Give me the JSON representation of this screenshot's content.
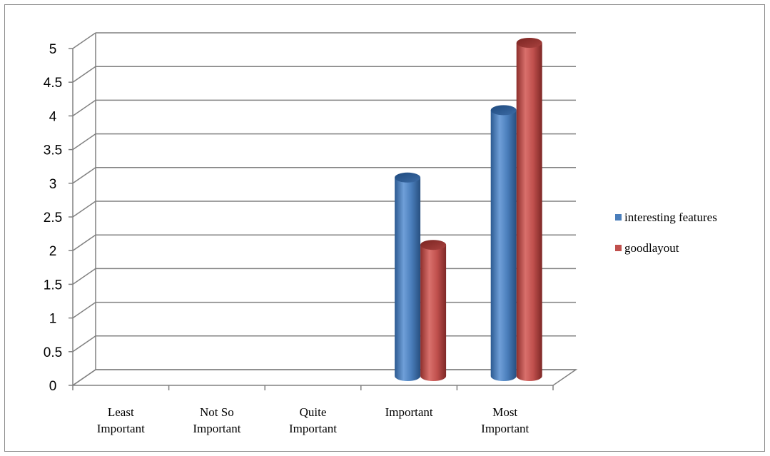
{
  "chart_data": {
    "type": "bar",
    "title": "",
    "xlabel": "",
    "ylabel": "",
    "categories": [
      [
        "Least",
        "Important"
      ],
      [
        "Not So",
        "Important"
      ],
      [
        "Quite",
        "Important"
      ],
      [
        "Important"
      ],
      [
        "Most",
        "Important"
      ]
    ],
    "series": [
      {
        "name": "interesting features",
        "values": [
          0,
          0,
          0,
          3,
          4
        ],
        "color": "#4a7ebb"
      },
      {
        "name": "goodlayout",
        "values": [
          0,
          0,
          0,
          2,
          5
        ],
        "color": "#c0504d"
      }
    ],
    "ylim": [
      0,
      5
    ],
    "yticks": [
      "0",
      "0.5",
      "1",
      "1.5",
      "2",
      "2.5",
      "3",
      "3.5",
      "4",
      "4.5",
      "5"
    ],
    "grid": true,
    "style": "3d-cylinder",
    "legend_position": "right"
  }
}
